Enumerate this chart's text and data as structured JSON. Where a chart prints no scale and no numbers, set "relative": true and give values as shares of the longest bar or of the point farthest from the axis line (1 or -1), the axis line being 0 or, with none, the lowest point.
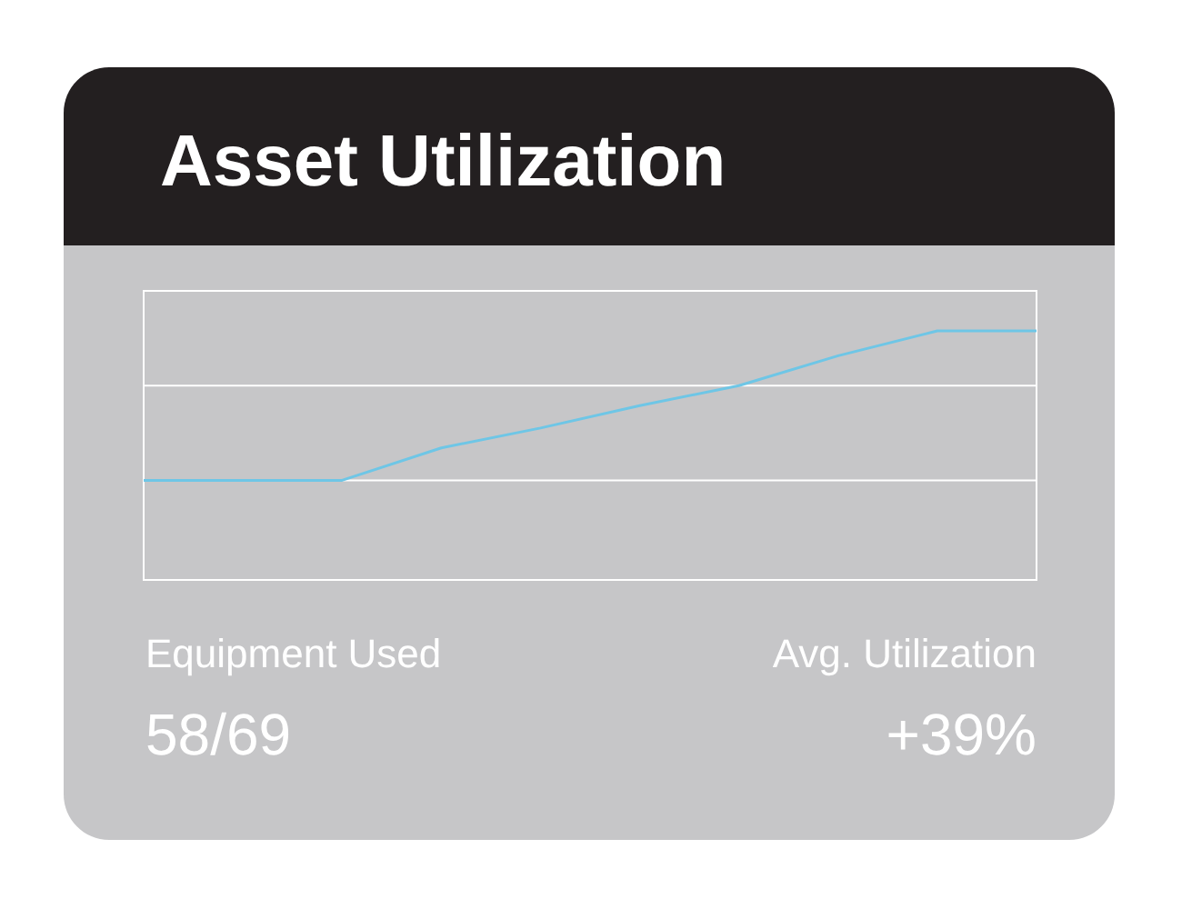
{
  "chart_data": {
    "type": "line",
    "title": "Asset Utilization",
    "relative": true,
    "ref_lines": [
      {
        "axis": "y",
        "value": 0.78,
        "color": "#ffffff"
      },
      {
        "axis": "y",
        "value": 0.4,
        "color": "#ffffff"
      }
    ],
    "categories": [
      null,
      null,
      null,
      null,
      null,
      null,
      null,
      null,
      null,
      null
    ],
    "series": [
      {
        "color": "#6ec6e6",
        "values": [
          0.4,
          0.4,
          0.4,
          0.53,
          0.61,
          0.7,
          0.78,
          0.9,
          1,
          1
        ]
      }
    ],
    "annotations": [
      "Equipment Used",
      "58/69",
      "Avg. Utilization",
      "+39%"
    ]
  }
}
